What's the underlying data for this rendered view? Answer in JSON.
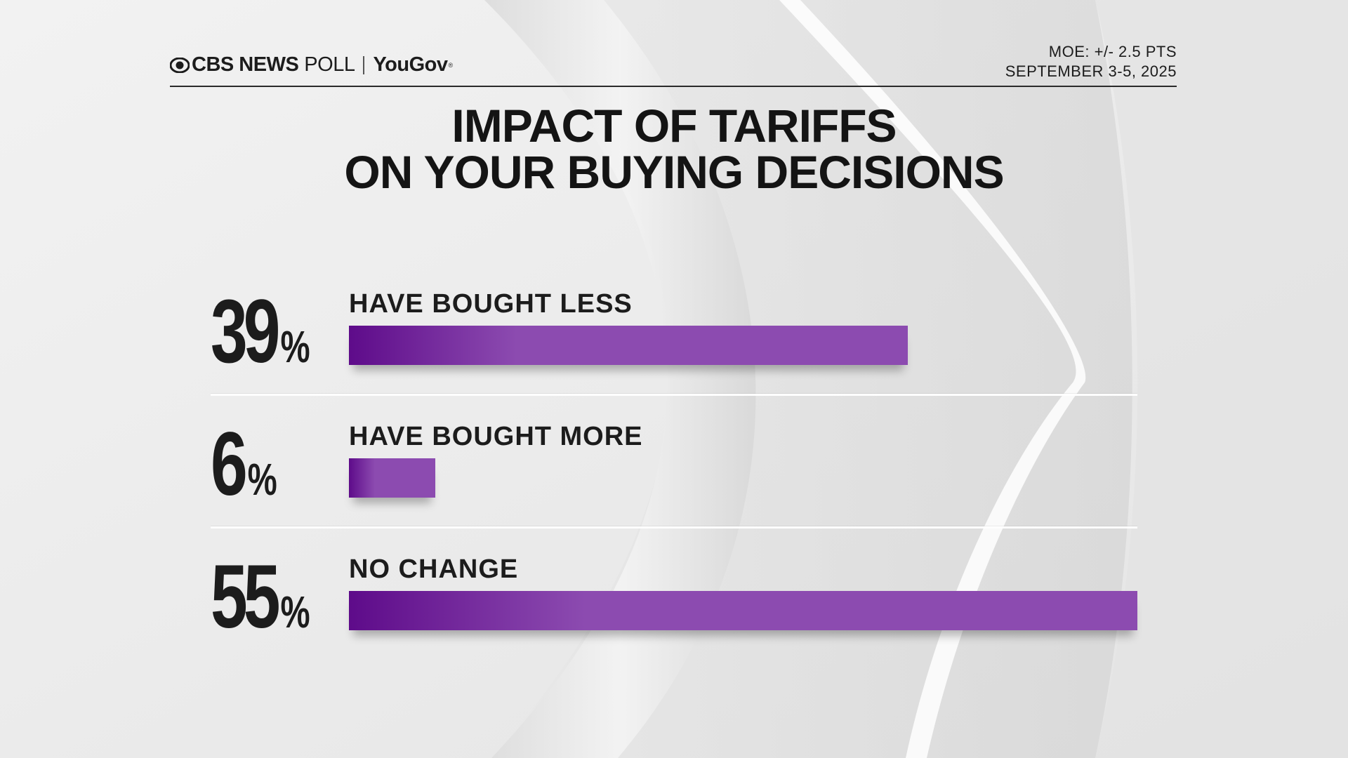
{
  "header": {
    "brand_cbs": "CBS NEWS",
    "brand_poll": "POLL",
    "brand_yougov": "YouGov",
    "moe": "MOE: +/- 2.5 PTS",
    "dates": "SEPTEMBER 3-5, 2025"
  },
  "title_line1": "IMPACT OF TARIFFS",
  "title_line2": "ON YOUR BUYING DECISIONS",
  "colors": {
    "bar_start": "#5e0b8a",
    "bar_end": "#8c4bb0",
    "text": "#1c1c1c",
    "background": "#ececec"
  },
  "chart_data": {
    "type": "bar",
    "orientation": "horizontal",
    "title": "IMPACT OF TARIFFS ON YOUR BUYING DECISIONS",
    "categories": [
      "HAVE BOUGHT LESS",
      "HAVE BOUGHT MORE",
      "NO CHANGE"
    ],
    "values": [
      39,
      6,
      55
    ],
    "value_labels": [
      "39",
      "6",
      "55"
    ],
    "unit": "%",
    "xlim": [
      0,
      55
    ],
    "grid": false,
    "legend": "none"
  }
}
